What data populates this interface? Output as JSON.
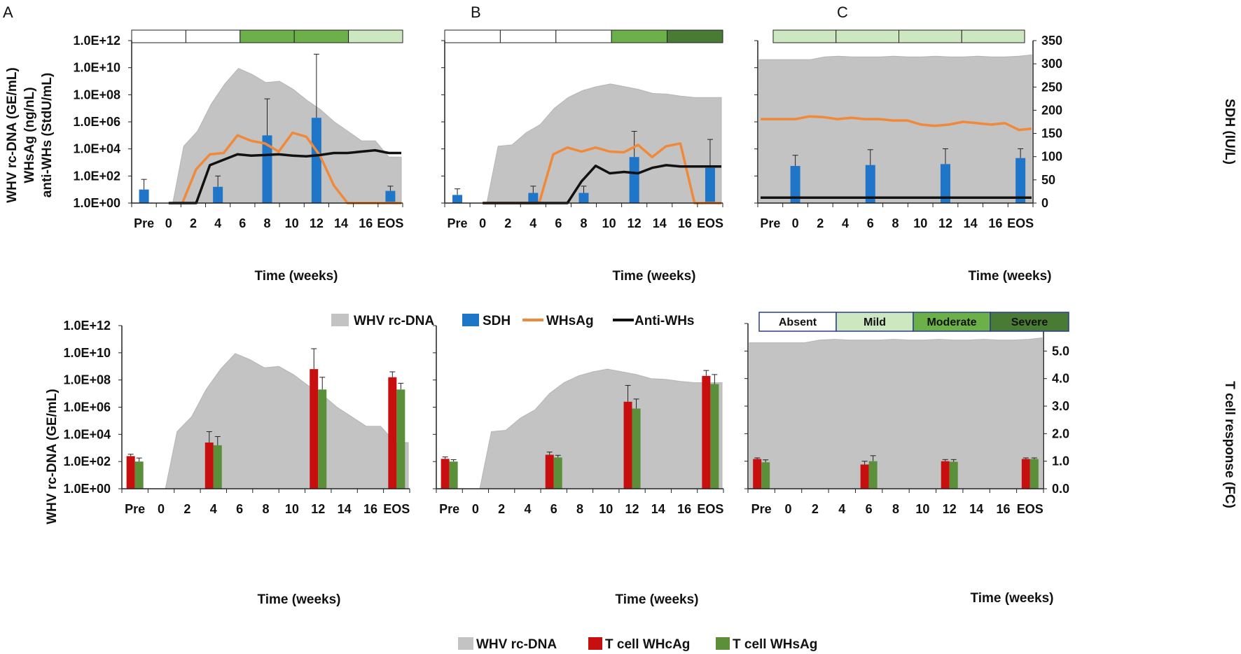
{
  "colors": {
    "area": "#c3c3c3",
    "sdh": "#1f75c8",
    "whsag": "#f0893a",
    "antiwhs": "#111111",
    "tc_whcag": "#c80f0f",
    "tc_whsag": "#5b8f3a",
    "sev_absent": "#ffffff",
    "sev_mild": "#cde8c0",
    "sev_moderate": "#6cb04a",
    "sev_severe": "#4a7b34"
  },
  "legends": {
    "top": {
      "area": "WHV rc-DNA",
      "sdh": "SDH",
      "whsag": "WHsAg",
      "antiwhs": "Anti-WHs"
    },
    "bottom": {
      "area": "WHV rc-DNA",
      "tc1": "T cell WHcAg",
      "tc2": "T cell WHsAg"
    },
    "severity": {
      "absent": "Absent",
      "mild": "Mild",
      "moderate": "Moderate",
      "severe": "Severe"
    }
  },
  "chart_data": [
    {
      "type": "area",
      "panel": "A",
      "title": "A",
      "xlabel": "Time (weeks)",
      "ylabel_lines": [
        "WHV rc-DNA (GE/mL)",
        "WHsAg (ng/nL)",
        "anti-WHs (StdU/mL)"
      ],
      "ylim_log10": [
        0,
        12
      ],
      "y_ticks": [
        "1.0E+00",
        "1.0E+02",
        "1.0E+04",
        "1.0E+06",
        "1.0E+08",
        "1.0E+10",
        "1.0E+12"
      ],
      "x_ticks": [
        "Pre",
        "0",
        "2",
        "4",
        "6",
        "8",
        "10",
        "12",
        "14",
        "16",
        "EOS"
      ],
      "severity_bar": [
        "absent",
        "absent",
        "moderate",
        "moderate",
        "mild"
      ],
      "rcdna_x": [
        0.2,
        1,
        2,
        3,
        4,
        5,
        6,
        7,
        8,
        9,
        10,
        11,
        12,
        13,
        14,
        15,
        16,
        16.9
      ],
      "rcdna_log10": [
        0,
        4.2,
        5.3,
        7.3,
        8.8,
        9.95,
        9.5,
        8.9,
        9.0,
        8.4,
        7.6,
        6.9,
        6.0,
        5.3,
        4.6,
        4.6,
        3.4,
        3.4
      ],
      "sdh_bars": {
        "x": [
          "Pre",
          "4",
          "8",
          "12",
          "EOS"
        ],
        "log10": [
          1.0,
          1.2,
          5.0,
          6.3,
          0.9
        ],
        "err_log10": [
          1.75,
          2.0,
          7.7,
          11.0,
          1.25
        ]
      },
      "whsag_x": [
        1,
        2,
        3,
        4,
        5,
        6,
        7,
        8,
        9,
        10,
        11,
        12,
        13,
        14,
        15,
        16,
        16.9
      ],
      "whsag_log10": [
        0,
        2.5,
        3.6,
        3.7,
        5.0,
        4.6,
        4.4,
        3.8,
        5.2,
        4.9,
        3.5,
        1.3,
        0,
        0,
        0,
        0,
        0
      ],
      "antiwhs_x": [
        0,
        1,
        2,
        3,
        4,
        5,
        6,
        7,
        8,
        9,
        10,
        11,
        12,
        13,
        14,
        15,
        16,
        16.9
      ],
      "antiwhs_log10": [
        0,
        0,
        0,
        2.8,
        3.2,
        3.6,
        3.5,
        3.55,
        3.6,
        3.5,
        3.45,
        3.55,
        3.7,
        3.7,
        3.8,
        3.9,
        3.7,
        3.7
      ]
    },
    {
      "type": "area",
      "panel": "B",
      "title": "B",
      "xlabel": "Time (weeks)",
      "ylim_log10": [
        0,
        12
      ],
      "x_ticks": [
        "Pre",
        "0",
        "2",
        "4",
        "6",
        "8",
        "10",
        "12",
        "14",
        "16",
        "EOS"
      ],
      "severity_bar": [
        "absent",
        "absent",
        "absent",
        "moderate",
        "severe"
      ],
      "rcdna_x": [
        0.2,
        1,
        2,
        3,
        4,
        5,
        6,
        7,
        8,
        9,
        10,
        11,
        12,
        13,
        14,
        15,
        16,
        16.9
      ],
      "rcdna_log10": [
        0,
        4.2,
        4.3,
        5.2,
        5.8,
        7.0,
        7.8,
        8.3,
        8.6,
        8.8,
        8.6,
        8.4,
        8.1,
        8.05,
        7.9,
        7.8,
        7.8,
        7.8
      ],
      "sdh_bars": {
        "x": [
          "Pre",
          "4",
          "8",
          "12",
          "EOS"
        ],
        "log10": [
          0.6,
          0.75,
          0.75,
          3.4,
          2.6
        ],
        "err_log10": [
          1.05,
          1.25,
          1.25,
          5.3,
          4.7
        ]
      },
      "whsag_x": [
        0,
        1,
        2,
        3,
        4,
        5,
        6,
        7,
        8,
        9,
        10,
        11,
        12,
        13,
        14,
        15,
        16,
        16.9
      ],
      "whsag_log10": [
        0,
        0,
        0,
        0,
        0,
        3.6,
        4.1,
        3.8,
        4.1,
        3.8,
        3.75,
        4.3,
        3.4,
        4.2,
        4.4,
        0,
        0,
        0
      ],
      "antiwhs_x": [
        0,
        1,
        2,
        3,
        4,
        5,
        6,
        7,
        8,
        9,
        10,
        11,
        12,
        13,
        14,
        15,
        16,
        16.9
      ],
      "antiwhs_log10": [
        0,
        0,
        0,
        0,
        0,
        0,
        0,
        1.6,
        2.75,
        2.2,
        2.3,
        2.2,
        2.6,
        2.8,
        2.7,
        2.7,
        2.7,
        2.7
      ]
    },
    {
      "type": "area",
      "panel": "C",
      "title": "C",
      "xlabel": "Time (weeks)",
      "y2label": "SDH (IU/L)",
      "y2lim": [
        0,
        350
      ],
      "y2_ticks": [
        "0",
        "50",
        "100",
        "150",
        "200",
        "250",
        "300",
        "350"
      ],
      "x_ticks": [
        "Pre",
        "0",
        "2",
        "4",
        "6",
        "8",
        "10",
        "12",
        "14",
        "16",
        "EOS"
      ],
      "severity_bar": [
        "mild",
        "mild",
        "mild",
        "mild"
      ],
      "rcdna_x": [
        0.2,
        1,
        2,
        3,
        4,
        5,
        6,
        7,
        8,
        9,
        10,
        11,
        12,
        13,
        14,
        15,
        16,
        16.9
      ],
      "rcdna_log10": [
        10.6,
        10.6,
        10.8,
        10.85,
        10.8,
        10.8,
        10.8,
        10.85,
        10.8,
        10.8,
        10.85,
        10.8,
        10.8,
        10.85,
        10.8,
        10.8,
        10.85,
        10.95
      ],
      "sdh_bars": {
        "x": [
          "0",
          "6",
          "12",
          "EOS"
        ],
        "values": [
          80,
          82,
          84,
          97
        ],
        "err": [
          103,
          115,
          117,
          117
        ]
      },
      "whsag_x": [
        -1,
        0,
        1,
        2,
        3,
        4,
        5,
        6,
        7,
        8,
        9,
        10,
        11,
        12,
        13,
        14,
        15,
        16,
        16.9
      ],
      "whsag_log10": [
        6.2,
        6.2,
        6.4,
        6.35,
        6.2,
        6.3,
        6.2,
        6.2,
        6.1,
        6.1,
        5.8,
        5.7,
        5.8,
        6.0,
        5.9,
        5.8,
        5.9,
        5.4,
        5.5
      ],
      "antiwhs_x": [
        -1,
        16.9
      ],
      "antiwhs_log10": [
        0.4,
        0.4
      ]
    },
    {
      "type": "bar",
      "panel": "A-bottom",
      "xlabel": "Time (weeks)",
      "ylabel": "WHV rc-DNA (GE/mL)",
      "ylim_log10": [
        0,
        12
      ],
      "y_ticks": [
        "1.0E+00",
        "1.0E+02",
        "1.0E+04",
        "1.0E+06",
        "1.0E+08",
        "1.0E+10",
        "1.0E+12"
      ],
      "x_ticks": [
        "Pre",
        "0",
        "2",
        "4",
        "6",
        "8",
        "10",
        "12",
        "14",
        "16",
        "EOS"
      ],
      "rcdna_x": [
        0.2,
        1,
        2,
        3,
        4,
        5,
        6,
        7,
        8,
        9,
        10,
        11,
        12,
        13,
        14,
        15,
        16,
        16.9
      ],
      "rcdna_log10": [
        0,
        4.2,
        5.3,
        7.3,
        8.8,
        9.95,
        9.5,
        8.9,
        9.0,
        8.4,
        7.6,
        6.9,
        6.0,
        5.3,
        4.6,
        4.6,
        3.4,
        3.4
      ],
      "tcell": {
        "x": [
          "Pre",
          "4",
          "12",
          "EOS"
        ],
        "whcag": [
          1.2,
          1.7,
          4.4,
          4.1
        ],
        "whcag_err": [
          1.27,
          2.1,
          5.15,
          4.3
        ],
        "whsag": [
          1.0,
          1.6,
          3.65,
          3.65
        ],
        "whsag_err": [
          1.13,
          1.92,
          4.1,
          3.88
        ]
      }
    },
    {
      "type": "bar",
      "panel": "B-bottom",
      "xlabel": "Time (weeks)",
      "ylim_log10": [
        0,
        12
      ],
      "x_ticks": [
        "Pre",
        "0",
        "2",
        "4",
        "6",
        "8",
        "10",
        "12",
        "14",
        "16",
        "EOS"
      ],
      "rcdna_x": [
        0.2,
        1,
        2,
        3,
        4,
        5,
        6,
        7,
        8,
        9,
        10,
        11,
        12,
        13,
        14,
        15,
        16,
        16.9
      ],
      "rcdna_log10": [
        0,
        4.2,
        4.3,
        5.2,
        5.8,
        7.0,
        7.8,
        8.3,
        8.6,
        8.8,
        8.6,
        8.4,
        8.1,
        8.05,
        7.9,
        7.8,
        7.8,
        7.8
      ],
      "tcell": {
        "x": [
          "Pre",
          "6",
          "12",
          "EOS"
        ],
        "whcag": [
          1.1,
          1.25,
          3.2,
          4.15
        ],
        "whcag_err": [
          1.17,
          1.35,
          3.8,
          4.35
        ],
        "whsag": [
          1.0,
          1.15,
          2.95,
          3.85
        ],
        "whsag_err": [
          1.07,
          1.23,
          3.3,
          4.2
        ]
      }
    },
    {
      "type": "bar",
      "panel": "C-bottom",
      "xlabel": "Time (weeks)",
      "y2label": "T cell response (FC)",
      "y2lim": [
        0,
        6
      ],
      "y2_ticks": [
        "0.0",
        "1.0",
        "2.0",
        "3.0",
        "4.0",
        "5.0",
        "6.0"
      ],
      "x_ticks": [
        "Pre",
        "0",
        "2",
        "4",
        "6",
        "8",
        "10",
        "12",
        "14",
        "16",
        "EOS"
      ],
      "rcdna_x": [
        0.2,
        1,
        2,
        3,
        4,
        5,
        6,
        7,
        8,
        9,
        10,
        11,
        12,
        13,
        14,
        15,
        16,
        16.9
      ],
      "rcdna_log10": [
        10.6,
        10.6,
        10.8,
        10.85,
        10.8,
        10.8,
        10.8,
        10.85,
        10.8,
        10.8,
        10.85,
        10.8,
        10.8,
        10.85,
        10.8,
        10.8,
        10.85,
        10.95
      ],
      "tcell": {
        "x": [
          "Pre",
          "6",
          "12",
          "EOS"
        ],
        "whcag": [
          1.08,
          0.88,
          1.0,
          1.08
        ],
        "whcag_err": [
          1.12,
          1.0,
          1.06,
          1.12
        ],
        "whsag": [
          0.96,
          1.0,
          0.98,
          1.08
        ],
        "whsag_err": [
          1.05,
          1.2,
          1.06,
          1.12
        ]
      }
    }
  ]
}
